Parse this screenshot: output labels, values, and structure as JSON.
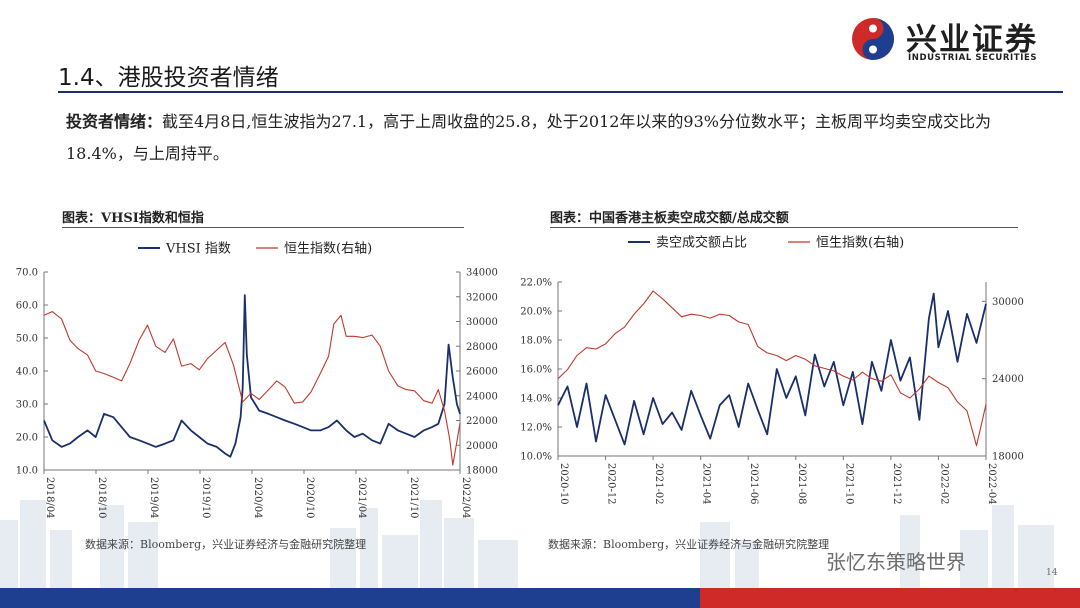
{
  "logo": {
    "cn": "兴业证券",
    "en": "INDUSTRIAL SECURITIES",
    "mark_colors": {
      "red": "#cf2a27",
      "blue": "#1e3f8f"
    }
  },
  "page_title": "1.4、港股投资者情绪",
  "summary": {
    "label": "投资者情绪：",
    "text": "截至4月8日,恒生波指为27.1，高于上周收盘的25.8，处于2012年以来的93%分位数水平；主板周平均卖空成交比为18.4%，与上周持平。"
  },
  "charts": {
    "left": {
      "caption": "图表：VHSI指数和恒指",
      "source": "数据来源：Bloomberg，兴业证券经济与金融研究院整理"
    },
    "right": {
      "caption": "图表：中国香港主板卖空成交额/总成交额",
      "source": "数据来源：Bloomberg，兴业证券经济与金融研究院整理"
    }
  },
  "watermark": "张忆东策略世界",
  "page_number": "14",
  "colors": {
    "navy": "#1a2f6b",
    "red_line": "#c0392b",
    "bar_red": "#cf2a27",
    "bar_blue": "#1e3f8f"
  },
  "chart_data": [
    {
      "type": "line",
      "legend": [
        "VHSI 指数",
        "恒生指数(右轴)"
      ],
      "legend_position": "top",
      "x_ticks": [
        "2018/04",
        "2018/10",
        "2019/04",
        "2019/10",
        "2020/04",
        "2020/10",
        "2021/04",
        "2021/10",
        "2022/04"
      ],
      "x_range": [
        2018.25,
        2022.27
      ],
      "ylim": [
        10,
        70
      ],
      "y_ticks": [
        "10.0",
        "20.0",
        "30.0",
        "40.0",
        "50.0",
        "60.0",
        "70.0"
      ],
      "y2lim": [
        18000,
        34000
      ],
      "y2_ticks": [
        "18000",
        "20000",
        "22000",
        "24000",
        "26000",
        "28000",
        "30000",
        "32000",
        "34000"
      ],
      "grid": false,
      "series": [
        {
          "name": "VHSI 指数",
          "axis": "left",
          "color": "#1a2f6b",
          "x": [
            2018.25,
            2018.33,
            2018.42,
            2018.5,
            2018.58,
            2018.67,
            2018.75,
            2018.83,
            2018.92,
            2019.0,
            2019.08,
            2019.17,
            2019.25,
            2019.33,
            2019.42,
            2019.5,
            2019.58,
            2019.67,
            2019.75,
            2019.83,
            2019.92,
            2020.0,
            2020.05,
            2020.1,
            2020.15,
            2020.17,
            2020.19,
            2020.21,
            2020.25,
            2020.33,
            2020.42,
            2020.5,
            2020.58,
            2020.67,
            2020.75,
            2020.83,
            2020.92,
            2021.0,
            2021.08,
            2021.17,
            2021.25,
            2021.33,
            2021.42,
            2021.5,
            2021.58,
            2021.67,
            2021.75,
            2021.83,
            2021.92,
            2022.0,
            2022.06,
            2022.12,
            2022.16,
            2022.2,
            2022.24,
            2022.27
          ],
          "values": [
            25,
            19,
            17,
            18,
            20,
            22,
            20,
            27,
            26,
            23,
            20,
            19,
            18,
            17,
            18,
            19,
            25,
            22,
            20,
            18,
            17,
            15,
            14,
            18,
            26,
            35,
            63,
            45,
            32,
            28,
            27,
            26,
            25,
            24,
            23,
            22,
            22,
            23,
            25,
            22,
            20,
            21,
            19,
            18,
            24,
            22,
            21,
            20,
            22,
            23,
            24,
            30,
            48,
            38,
            30,
            27
          ]
        },
        {
          "name": "恒生指数(右轴)",
          "axis": "right",
          "color": "#c0392b",
          "x": [
            2018.25,
            2018.33,
            2018.42,
            2018.5,
            2018.58,
            2018.67,
            2018.75,
            2018.83,
            2018.92,
            2019.0,
            2019.08,
            2019.17,
            2019.25,
            2019.33,
            2019.42,
            2019.5,
            2019.58,
            2019.67,
            2019.75,
            2019.83,
            2019.92,
            2020.0,
            2020.08,
            2020.17,
            2020.25,
            2020.33,
            2020.42,
            2020.5,
            2020.58,
            2020.67,
            2020.75,
            2020.83,
            2020.92,
            2021.0,
            2021.05,
            2021.12,
            2021.17,
            2021.25,
            2021.33,
            2021.42,
            2021.5,
            2021.58,
            2021.67,
            2021.75,
            2021.83,
            2021.92,
            2022.0,
            2022.06,
            2022.12,
            2022.17,
            2022.2,
            2022.24,
            2022.27
          ],
          "values": [
            30500,
            30800,
            30200,
            28500,
            27800,
            27300,
            26000,
            25800,
            25500,
            25200,
            26600,
            28500,
            29700,
            28000,
            27500,
            28600,
            26400,
            26600,
            26100,
            27000,
            27700,
            28300,
            26500,
            23500,
            24200,
            23700,
            24500,
            25200,
            24700,
            23400,
            23500,
            24300,
            25800,
            27200,
            29800,
            30500,
            28800,
            28800,
            28700,
            28900,
            28000,
            26000,
            24800,
            24500,
            24400,
            23600,
            23400,
            24500,
            22800,
            20500,
            18400,
            20300,
            21800
          ]
        }
      ]
    },
    {
      "type": "line",
      "legend": [
        "卖空成交额占比",
        "恒生指数(右轴)"
      ],
      "legend_position": "top",
      "x_ticks": [
        "2020-10",
        "2020-12",
        "2021-02",
        "2021-04",
        "2021-06",
        "2021-08",
        "2021-10",
        "2021-12",
        "2022-02",
        "2022-04"
      ],
      "x_range": [
        0,
        18
      ],
      "ylim": [
        10,
        22
      ],
      "y_ticks": [
        "10.0%",
        "12.0%",
        "14.0%",
        "16.0%",
        "18.0%",
        "20.0%",
        "22.0%"
      ],
      "y2lim": [
        18000,
        31500
      ],
      "y2_ticks": [
        "18000",
        "24000",
        "30000"
      ],
      "grid": false,
      "series": [
        {
          "name": "卖空成交额占比",
          "axis": "left",
          "color": "#1a2f6b",
          "x": [
            0,
            0.4,
            0.8,
            1.2,
            1.6,
            2.0,
            2.4,
            2.8,
            3.2,
            3.6,
            4.0,
            4.4,
            4.8,
            5.2,
            5.6,
            6.0,
            6.4,
            6.8,
            7.2,
            7.6,
            8.0,
            8.4,
            8.8,
            9.2,
            9.6,
            10.0,
            10.4,
            10.8,
            11.2,
            11.6,
            12.0,
            12.4,
            12.8,
            13.2,
            13.6,
            14.0,
            14.4,
            14.8,
            15.2,
            15.6,
            15.8,
            16.0,
            16.4,
            16.8,
            17.2,
            17.6,
            18.0
          ],
          "values": [
            13.5,
            14.8,
            12.0,
            15.0,
            11.0,
            14.2,
            12.5,
            10.8,
            13.8,
            11.5,
            14.0,
            12.2,
            13.0,
            11.8,
            14.5,
            12.8,
            11.2,
            13.5,
            14.2,
            12.0,
            15.0,
            13.2,
            11.5,
            16.0,
            14.0,
            15.5,
            12.8,
            17.0,
            14.8,
            16.5,
            13.5,
            15.8,
            12.2,
            16.5,
            14.5,
            18.0,
            15.2,
            16.8,
            12.5,
            19.5,
            21.2,
            17.5,
            20.0,
            16.5,
            19.8,
            17.8,
            20.5
          ]
        },
        {
          "name": "恒生指数(右轴)",
          "axis": "right",
          "color": "#c0392b",
          "x": [
            0,
            0.4,
            0.8,
            1.2,
            1.6,
            2.0,
            2.4,
            2.8,
            3.2,
            3.6,
            4.0,
            4.4,
            4.8,
            5.2,
            5.6,
            6.0,
            6.4,
            6.8,
            7.2,
            7.6,
            8.0,
            8.4,
            8.8,
            9.2,
            9.6,
            10.0,
            10.4,
            10.8,
            11.2,
            11.6,
            12.0,
            12.4,
            12.8,
            13.2,
            13.6,
            14.0,
            14.4,
            14.8,
            15.2,
            15.6,
            16.0,
            16.4,
            16.8,
            17.2,
            17.6,
            18.0
          ],
          "values": [
            24000,
            24700,
            25800,
            26400,
            26300,
            26700,
            27500,
            28000,
            29000,
            29800,
            30800,
            30200,
            29500,
            28800,
            29000,
            28900,
            28700,
            29000,
            28900,
            28400,
            28200,
            26500,
            26000,
            25800,
            25400,
            25800,
            25500,
            25000,
            24800,
            24600,
            24200,
            23900,
            24500,
            24000,
            23800,
            24300,
            22900,
            22500,
            23200,
            24200,
            23700,
            23300,
            22200,
            21500,
            18800,
            22000
          ]
        }
      ]
    }
  ]
}
